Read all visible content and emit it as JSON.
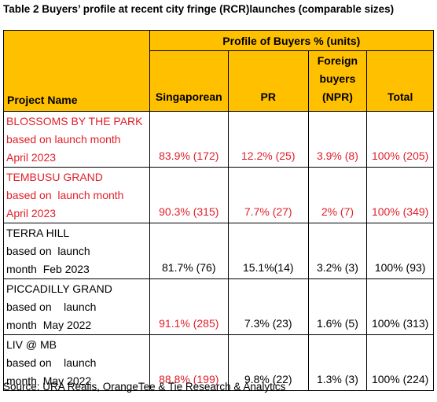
{
  "title": "Table 2 Buyers’ profile at recent city fringe (RCR)launches (comparable sizes)",
  "table": {
    "group_header": "Profile of Buyers % (units)",
    "columns": [
      [
        "Project Name"
      ],
      [
        "Singaporean"
      ],
      [
        "PR"
      ],
      [
        "Foreign",
        "buyers",
        "(NPR)"
      ],
      [
        "Total"
      ]
    ],
    "rows": [
      {
        "name": [
          "BLOSSOMS BY THE PARK",
          "based on launch month",
          "April 2023"
        ],
        "cells": [
          "83.9% (172)",
          "12.2% (25)",
          "3.9% (8)",
          "100% (205)"
        ]
      },
      {
        "name": [
          "TEMBUSU GRAND",
          "based on  launch month",
          "April 2023"
        ],
        "cells": [
          "90.3% (315)",
          "7.7% (27)",
          "2% (7)",
          "100% (349)"
        ]
      },
      {
        "name": [
          "TERRA HILL",
          "based on  launch",
          "month  Feb 2023"
        ],
        "cells": [
          "81.7% (76)",
          "15.1%(14)",
          "3.2% (3)",
          "100% (93)"
        ]
      },
      {
        "name": [
          "PICCADILLY GRAND",
          "based on    launch",
          "month  May 2022"
        ],
        "cells": [
          "91.1% (285)",
          "7.3% (23)",
          "1.6% (5)",
          "100% (313)"
        ]
      },
      {
        "name": [
          "LIV @ MB",
          "based on    launch",
          "month  May 2022"
        ],
        "cells": [
          "88.8% (199)",
          "9.8% (22)",
          "1.3% (3)",
          "100% (224)"
        ]
      }
    ]
  },
  "source": "Source: URA Realis, OrangeTee & Tie Research & Analytics"
}
